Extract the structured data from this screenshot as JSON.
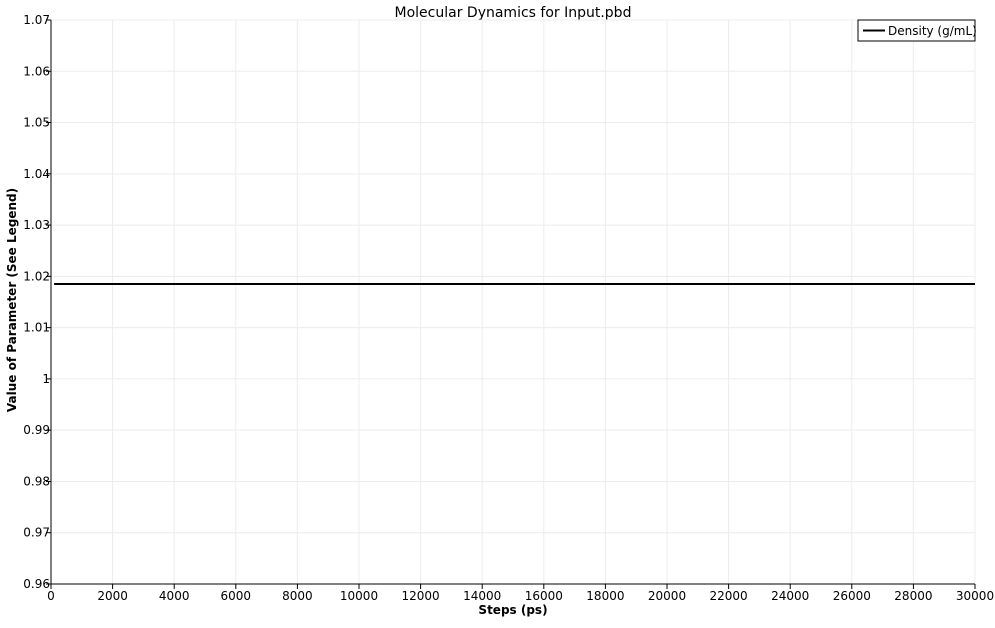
{
  "chart_data": {
    "type": "line",
    "title": "Molecular Dynamics for Input.pbd",
    "xlabel": "Steps (ps)",
    "ylabel": "Value of Parameter (See Legend)",
    "xlim": [
      0,
      30000
    ],
    "ylim": [
      0.96,
      1.07
    ],
    "xticks": [
      0,
      2000,
      4000,
      6000,
      8000,
      10000,
      12000,
      14000,
      16000,
      18000,
      20000,
      22000,
      24000,
      26000,
      28000,
      30000
    ],
    "xtick_labels": [
      "0",
      "2000",
      "4000",
      "6000",
      "8000",
      "10000",
      "12000",
      "14000",
      "16000",
      "18000",
      "20000",
      "22000",
      "24000",
      "26000",
      "28000",
      "30000"
    ],
    "yticks": [
      0.96,
      0.97,
      0.98,
      0.99,
      1.0,
      1.01,
      1.02,
      1.03,
      1.04,
      1.05,
      1.06,
      1.07
    ],
    "ytick_labels": [
      "0.96",
      "0.97",
      "0.98",
      "0.99",
      "1",
      "1.01",
      "1.02",
      "1.03",
      "1.04",
      "1.05",
      "1.06",
      "1.07"
    ],
    "grid": true,
    "legend_position": "top-right",
    "series": [
      {
        "name": "Density (g/mL)",
        "color": "#000000",
        "x": [
          100,
          30000
        ],
        "y": [
          1.0185,
          1.0185
        ]
      }
    ]
  }
}
